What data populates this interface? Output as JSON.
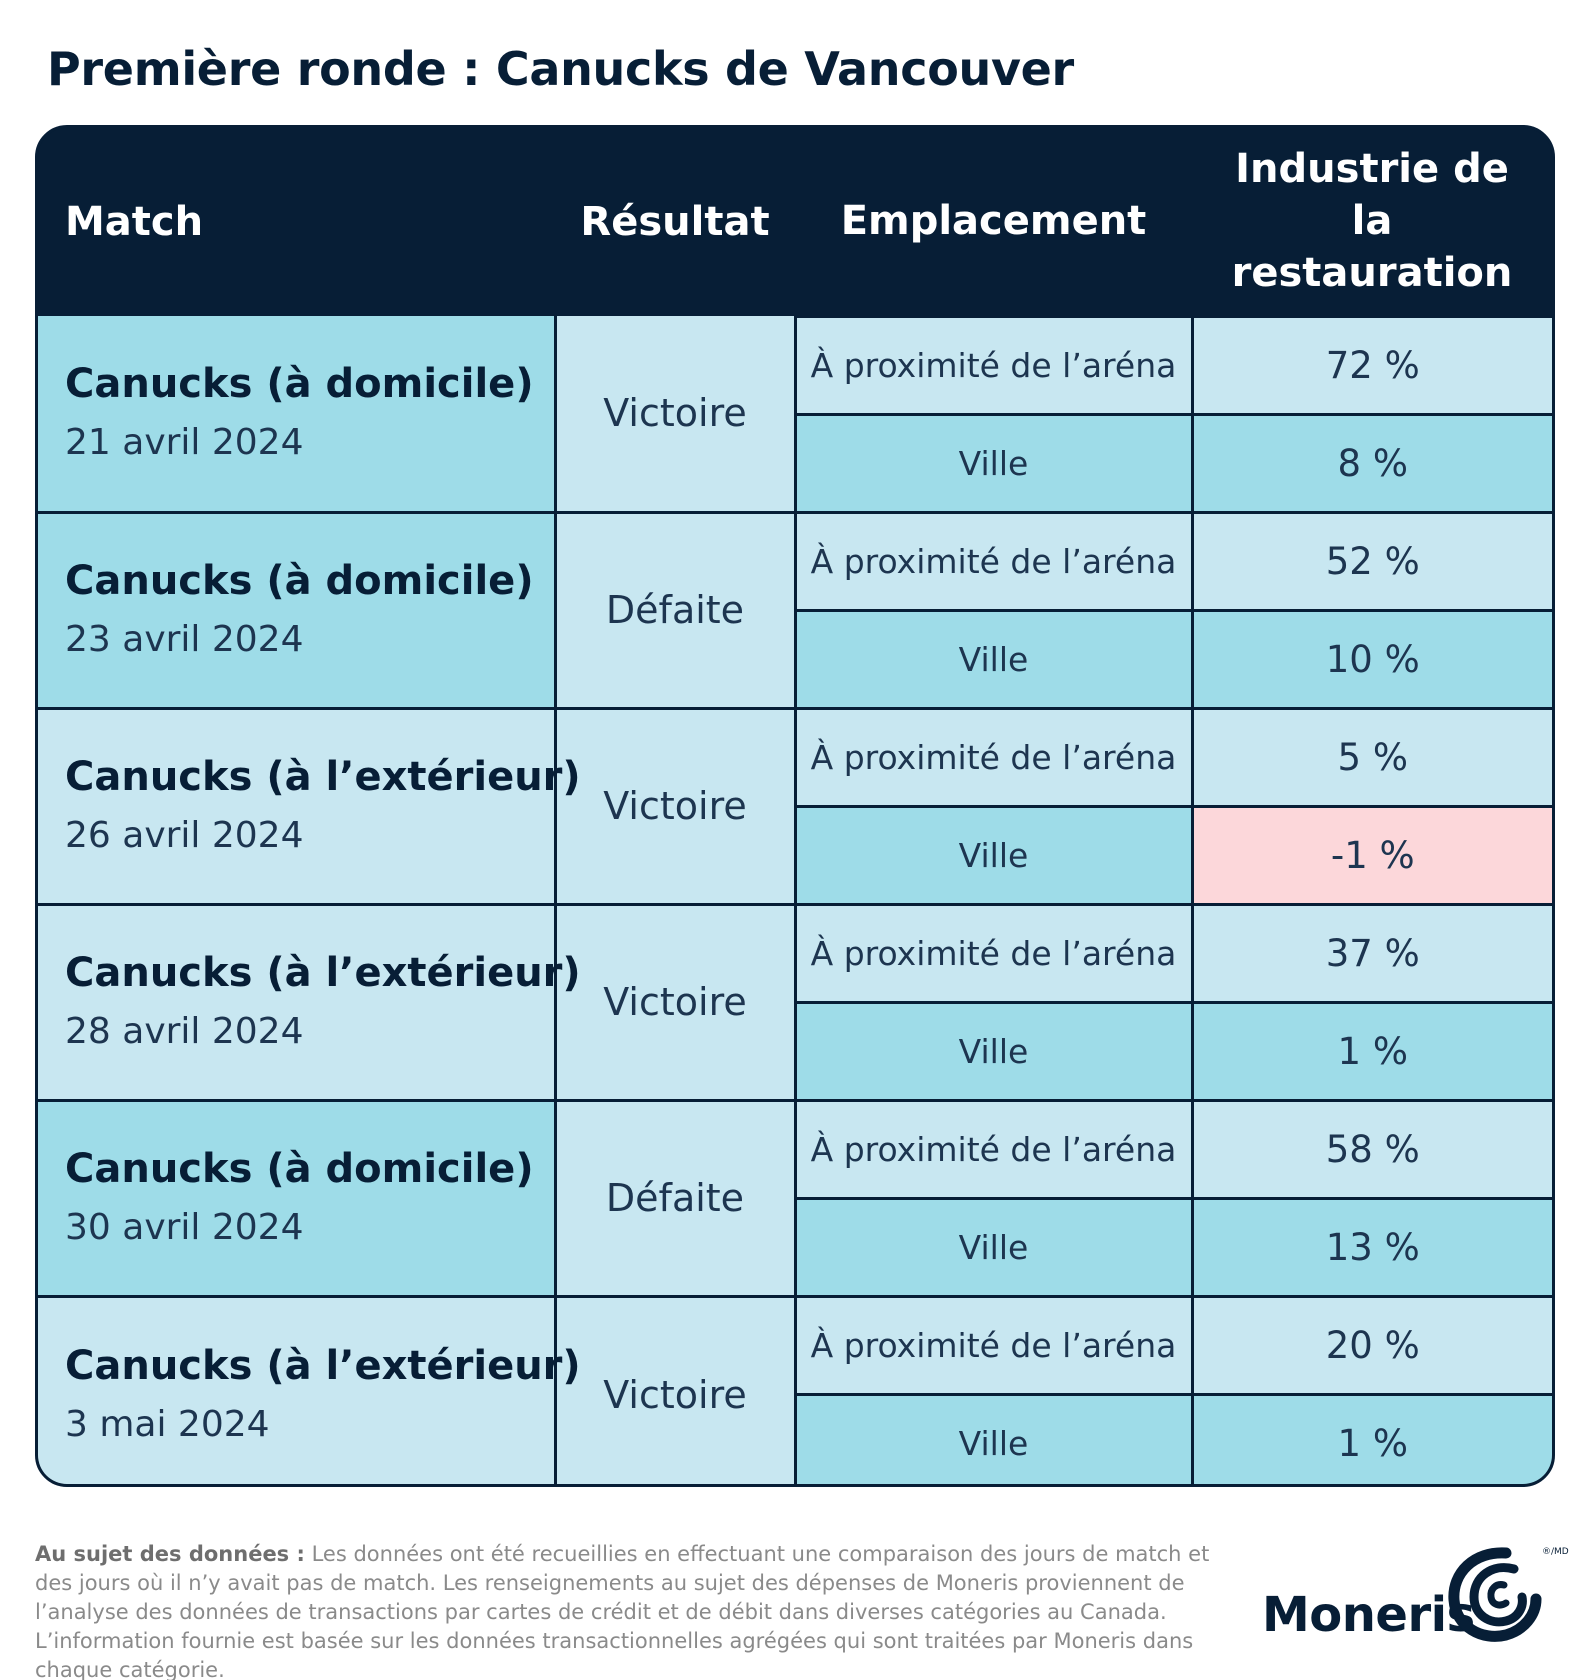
{
  "title": "Première ronde : Canucks de Vancouver",
  "table": {
    "headers": {
      "match": "Match",
      "result": "Résultat",
      "location": "Emplacement",
      "industry": "Industrie de la restauration"
    },
    "games": [
      {
        "team": "Canucks (à domicile)",
        "date": "21 avril 2024",
        "result": "Victoire",
        "rows": [
          {
            "location": "À proximité de l’aréna",
            "value": "72 %"
          },
          {
            "location": "Ville",
            "value": "8 %"
          }
        ]
      },
      {
        "team": "Canucks (à domicile)",
        "date": "23 avril 2024",
        "result": "Défaite",
        "rows": [
          {
            "location": "À proximité de l’aréna",
            "value": "52 %"
          },
          {
            "location": "Ville",
            "value": "10 %"
          }
        ]
      },
      {
        "team": "Canucks (à l’extérieur)",
        "date": "26 avril 2024",
        "result": "Victoire",
        "rows": [
          {
            "location": "À proximité de l’aréna",
            "value": "5 %"
          },
          {
            "location": "Ville",
            "value": "-1 %"
          }
        ]
      },
      {
        "team": "Canucks (à l’extérieur)",
        "date": "28 avril 2024",
        "result": "Victoire",
        "rows": [
          {
            "location": "À proximité de l’aréna",
            "value": "37 %"
          },
          {
            "location": "Ville",
            "value": "1 %"
          }
        ]
      },
      {
        "team": "Canucks (à domicile)",
        "date": "30 avril 2024",
        "result": "Défaite",
        "rows": [
          {
            "location": "À proximité de l’aréna",
            "value": "58 %"
          },
          {
            "location": "Ville",
            "value": "13 %"
          }
        ]
      },
      {
        "team": "Canucks (à l’extérieur)",
        "date": "3 mai 2024",
        "result": "Victoire",
        "rows": [
          {
            "location": "À proximité de l’aréna",
            "value": "20 %"
          },
          {
            "location": "Ville",
            "value": "1 %"
          }
        ]
      }
    ]
  },
  "footnote": {
    "label": "Au sujet des données :",
    "text": "Les données ont été recueillies en effectuant une comparaison des jours de match et des jours où il n’y avait pas de match. Les renseignements au sujet des dépenses de Moneris proviennent de l’analyse des données de transactions par cartes de crédit et de débit dans diverses catégories au Canada. L’information fournie est basée sur les données transactionnelles agrégées qui sont traitées par Moneris dans chaque catégorie."
  },
  "logo": {
    "name": "Moneris",
    "mark": "®/MD",
    "icon": "moneris-swirl-icon"
  },
  "colors": {
    "navy": "#071e36",
    "cyan": "#9edce8",
    "light_blue": "#c8e7f1",
    "negative": "#fcd7da"
  }
}
